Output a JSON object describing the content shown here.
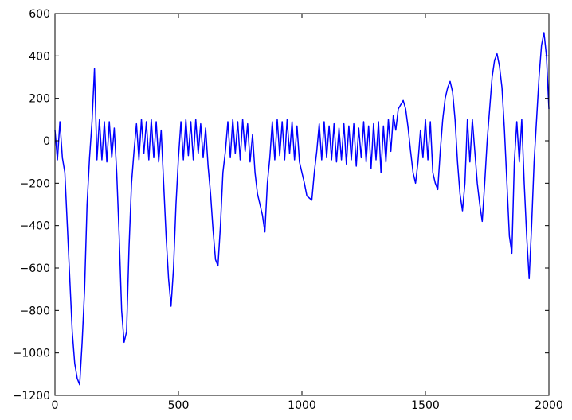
{
  "chart_data": {
    "type": "line",
    "color": "#0000ff",
    "xlim": [
      0,
      2000
    ],
    "ylim": [
      -1200,
      600
    ],
    "xticks": [
      0,
      500,
      1000,
      1500,
      2000
    ],
    "yticks": [
      {
        "value": -1200,
        "label": "−1200"
      },
      {
        "value": -1000,
        "label": "−1000"
      },
      {
        "value": -800,
        "label": "−800"
      },
      {
        "value": -600,
        "label": "−600"
      },
      {
        "value": -400,
        "label": "−400"
      },
      {
        "value": -200,
        "label": "−200"
      },
      0,
      200,
      400,
      600
    ],
    "x": [
      0,
      10,
      20,
      30,
      40,
      50,
      60,
      70,
      80,
      90,
      100,
      110,
      120,
      130,
      140,
      150,
      160,
      170,
      180,
      190,
      200,
      210,
      220,
      230,
      240,
      250,
      260,
      270,
      280,
      290,
      300,
      310,
      320,
      330,
      340,
      350,
      360,
      370,
      380,
      390,
      400,
      410,
      420,
      430,
      440,
      450,
      460,
      470,
      480,
      490,
      500,
      510,
      520,
      530,
      540,
      550,
      560,
      570,
      580,
      590,
      600,
      610,
      620,
      630,
      640,
      650,
      660,
      670,
      680,
      690,
      700,
      710,
      720,
      730,
      740,
      750,
      760,
      770,
      780,
      790,
      800,
      810,
      820,
      830,
      840,
      850,
      860,
      870,
      880,
      890,
      900,
      910,
      920,
      930,
      940,
      950,
      960,
      970,
      980,
      990,
      1000,
      1010,
      1020,
      1030,
      1040,
      1050,
      1060,
      1070,
      1080,
      1090,
      1100,
      1110,
      1120,
      1130,
      1140,
      1150,
      1160,
      1170,
      1180,
      1190,
      1200,
      1210,
      1220,
      1230,
      1240,
      1250,
      1260,
      1270,
      1280,
      1290,
      1300,
      1310,
      1320,
      1330,
      1340,
      1350,
      1360,
      1370,
      1380,
      1390,
      1400,
      1410,
      1420,
      1430,
      1440,
      1450,
      1460,
      1470,
      1480,
      1490,
      1500,
      1510,
      1520,
      1530,
      1540,
      1550,
      1560,
      1570,
      1580,
      1590,
      1600,
      1610,
      1620,
      1630,
      1640,
      1650,
      1660,
      1670,
      1680,
      1690,
      1700,
      1710,
      1720,
      1730,
      1740,
      1750,
      1760,
      1770,
      1780,
      1790,
      1800,
      1810,
      1820,
      1830,
      1840,
      1850,
      1860,
      1870,
      1880,
      1890,
      1900,
      1910,
      1920,
      1930,
      1940,
      1950,
      1960,
      1970,
      1980,
      1990,
      2000
    ],
    "values": [
      50,
      -90,
      90,
      -80,
      -150,
      -400,
      -650,
      -900,
      -1050,
      -1120,
      -1150,
      -950,
      -700,
      -300,
      -80,
      90,
      340,
      -90,
      100,
      -90,
      90,
      -100,
      90,
      -80,
      60,
      -150,
      -450,
      -800,
      -950,
      -900,
      -500,
      -200,
      -50,
      80,
      -90,
      100,
      -60,
      90,
      -90,
      100,
      -80,
      90,
      -100,
      50,
      -200,
      -450,
      -650,
      -780,
      -600,
      -300,
      -80,
      90,
      -90,
      100,
      -70,
      90,
      -90,
      100,
      -60,
      80,
      -80,
      60,
      -120,
      -250,
      -420,
      -560,
      -590,
      -400,
      -150,
      -50,
      90,
      -80,
      100,
      -60,
      90,
      -90,
      100,
      -50,
      80,
      -100,
      30,
      -150,
      -250,
      -300,
      -350,
      -430,
      -200,
      -80,
      90,
      -90,
      100,
      -70,
      90,
      -90,
      100,
      -60,
      90,
      -90,
      70,
      -100,
      -150,
      -200,
      -260,
      -270,
      -280,
      -150,
      -50,
      80,
      -90,
      90,
      -80,
      70,
      -90,
      80,
      -100,
      60,
      -90,
      80,
      -110,
      70,
      -90,
      80,
      -120,
      60,
      -80,
      90,
      -100,
      70,
      -130,
      80,
      -90,
      90,
      -150,
      70,
      -100,
      100,
      -50,
      120,
      50,
      150,
      170,
      190,
      150,
      60,
      -50,
      -150,
      -200,
      -100,
      50,
      -80,
      100,
      -90,
      90,
      -150,
      -200,
      -230,
      -50,
      100,
      200,
      250,
      280,
      230,
      100,
      -100,
      -250,
      -330,
      -200,
      100,
      -100,
      100,
      -50,
      -200,
      -300,
      -380,
      -200,
      0,
      150,
      300,
      380,
      410,
      350,
      250,
      50,
      -200,
      -450,
      -530,
      -100,
      90,
      -100,
      100,
      -200,
      -450,
      -650,
      -400,
      -100,
      100,
      300,
      450,
      510,
      400,
      150
    ]
  }
}
